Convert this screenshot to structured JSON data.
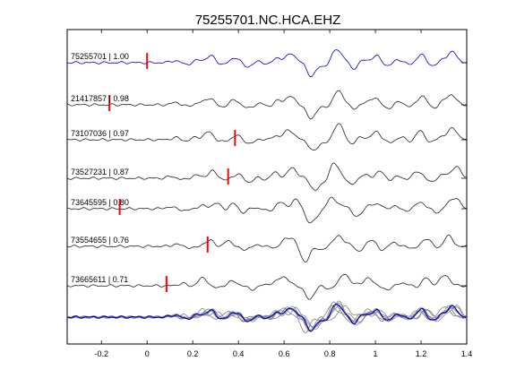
{
  "chart_data": {
    "type": "line",
    "title": "75255701.NC.HCA.EHZ",
    "xlabel": "",
    "ylabel": "",
    "xlim": [
      -0.35,
      1.4
    ],
    "xticks": [
      -0.2,
      0,
      0.2,
      0.4,
      0.6,
      0.8,
      1,
      1.2,
      1.4
    ],
    "xtick_labels": [
      "-0.2",
      "0",
      "0.2",
      "0.4",
      "0.6",
      "0.8",
      "1",
      "1.2",
      "1.4"
    ],
    "grid": false,
    "legend": "none",
    "colors": {
      "reference": "#0000cc",
      "trace": "#222222",
      "stack": "#808080",
      "pick": "#ff0000",
      "axes": "#000000"
    },
    "traces": [
      {
        "id": "75255701",
        "cc": "1.00",
        "pick": 0.0,
        "reference": true
      },
      {
        "id": "21417857",
        "cc": "0.98",
        "pick": -0.165
      },
      {
        "id": "73107036",
        "cc": "0.97",
        "pick": 0.385
      },
      {
        "id": "73527231",
        "cc": "0.87",
        "pick": 0.355
      },
      {
        "id": "73645595",
        "cc": "0.80",
        "pick": -0.12
      },
      {
        "id": "73554655",
        "cc": "0.76",
        "pick": 0.265
      },
      {
        "id": "73665611",
        "cc": "0.71",
        "pick": 0.085
      }
    ],
    "waveform_peaks": [
      {
        "t": 0.12,
        "a": 0.15
      },
      {
        "t": 0.175,
        "a": -0.12
      },
      {
        "t": 0.225,
        "a": 0.2
      },
      {
        "t": 0.28,
        "a": 0.5
      },
      {
        "t": 0.33,
        "a": -0.15
      },
      {
        "t": 0.385,
        "a": 0.38
      },
      {
        "t": 0.44,
        "a": -0.3
      },
      {
        "t": 0.49,
        "a": 0.1
      },
      {
        "t": 0.535,
        "a": -0.15
      },
      {
        "t": 0.57,
        "a": 0.4
      },
      {
        "t": 0.63,
        "a": 0.68
      },
      {
        "t": 0.665,
        "a": 0.05
      },
      {
        "t": 0.72,
        "a": -1.0
      },
      {
        "t": 0.775,
        "a": -0.25
      },
      {
        "t": 0.83,
        "a": 1.0
      },
      {
        "t": 0.875,
        "a": 0.3
      },
      {
        "t": 0.9,
        "a": -0.55
      },
      {
        "t": 0.95,
        "a": 0.2
      },
      {
        "t": 1.005,
        "a": 0.5
      },
      {
        "t": 1.055,
        "a": -0.25
      },
      {
        "t": 1.1,
        "a": 0.25
      },
      {
        "t": 1.15,
        "a": -0.15
      },
      {
        "t": 1.2,
        "a": 0.6
      },
      {
        "t": 1.255,
        "a": -0.25
      },
      {
        "t": 1.3,
        "a": 0.3
      },
      {
        "t": 1.34,
        "a": 0.75
      },
      {
        "t": 1.385,
        "a": 0.0
      }
    ]
  }
}
